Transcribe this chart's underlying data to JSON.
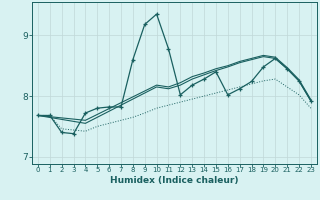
{
  "xlabel": "Humidex (Indice chaleur)",
  "bg_color": "#d8f2f2",
  "grid_color": "#c0d8d8",
  "line_color": "#1a6060",
  "xlim": [
    -0.5,
    23.5
  ],
  "ylim": [
    6.88,
    9.55
  ],
  "yticks": [
    7,
    8,
    9
  ],
  "xticks": [
    0,
    1,
    2,
    3,
    4,
    5,
    6,
    7,
    8,
    9,
    10,
    11,
    12,
    13,
    14,
    15,
    16,
    17,
    18,
    19,
    20,
    21,
    22,
    23
  ],
  "main_x": [
    0,
    1,
    2,
    3,
    4,
    5,
    6,
    7,
    8,
    9,
    10,
    11,
    12,
    13,
    14,
    15,
    16,
    17,
    18,
    19,
    20,
    21,
    22,
    23
  ],
  "main_y": [
    7.68,
    7.68,
    7.4,
    7.38,
    7.72,
    7.8,
    7.82,
    7.82,
    8.6,
    9.18,
    9.35,
    8.78,
    8.02,
    8.18,
    8.28,
    8.4,
    8.02,
    8.12,
    8.24,
    8.48,
    8.62,
    8.45,
    8.25,
    7.92
  ],
  "line2_x": [
    0,
    4,
    10,
    11,
    12,
    13,
    14,
    15,
    16,
    17,
    18,
    19,
    20,
    21,
    22,
    23
  ],
  "line2_y": [
    7.68,
    7.55,
    8.15,
    8.12,
    8.18,
    8.28,
    8.35,
    8.42,
    8.48,
    8.55,
    8.6,
    8.65,
    8.62,
    8.45,
    8.25,
    7.92
  ],
  "line3_x": [
    0,
    4,
    10,
    11,
    12,
    13,
    14,
    15,
    16,
    17,
    18,
    19,
    20,
    21,
    22,
    23
  ],
  "line3_y": [
    7.68,
    7.6,
    8.18,
    8.15,
    8.22,
    8.32,
    8.38,
    8.45,
    8.5,
    8.57,
    8.62,
    8.67,
    8.64,
    8.47,
    8.27,
    7.94
  ],
  "dotted_x": [
    0,
    1,
    2,
    3,
    4,
    5,
    6,
    7,
    8,
    9,
    10,
    11,
    12,
    13,
    14,
    15,
    16,
    17,
    18,
    19,
    20,
    21,
    22,
    23
  ],
  "dotted_y": [
    7.68,
    7.68,
    7.46,
    7.44,
    7.42,
    7.5,
    7.55,
    7.6,
    7.65,
    7.72,
    7.8,
    7.85,
    7.9,
    7.95,
    8.0,
    8.05,
    8.1,
    8.15,
    8.2,
    8.25,
    8.28,
    8.15,
    8.02,
    7.8
  ]
}
